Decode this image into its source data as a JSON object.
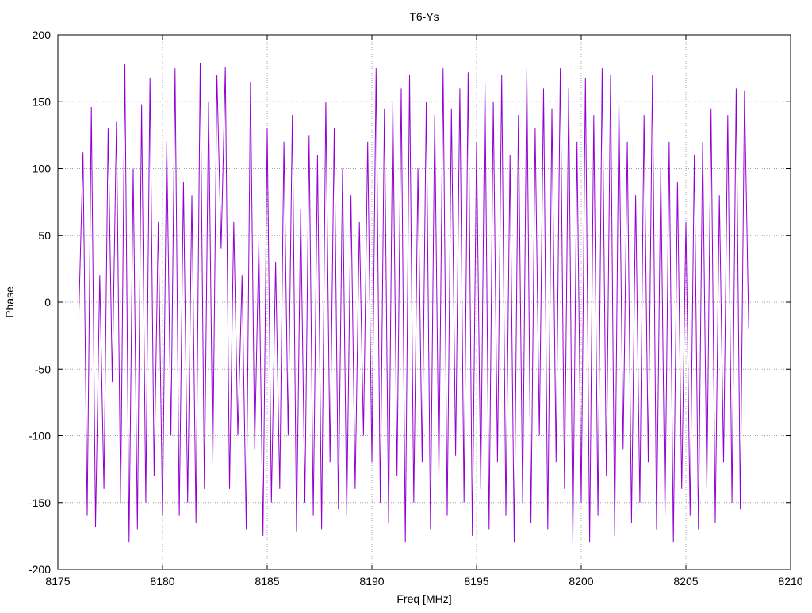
{
  "chart_data": {
    "type": "line",
    "title": "T6-Ys",
    "xlabel": "Freq [MHz]",
    "ylabel": "Phase",
    "xlim": [
      8175,
      8210
    ],
    "ylim": [
      -200,
      200
    ],
    "xticks": [
      "8175",
      "8180",
      "8185",
      "8190",
      "8195",
      "8200",
      "8205",
      "8210"
    ],
    "yticks": [
      "-200",
      "-150",
      "-100",
      "-50",
      "0",
      "50",
      "100",
      "150",
      "200"
    ],
    "grid": true,
    "line_color": "#9400d3",
    "series": [
      {
        "name": "T6-Ys",
        "x_start": 8176.0,
        "x_end": 8208.0,
        "values": [
          -10,
          112,
          -160,
          146,
          -168,
          20,
          -140,
          130,
          -60,
          135,
          -150,
          178,
          -180,
          100,
          -170,
          148,
          -150,
          168,
          -130,
          60,
          -160,
          120,
          -100,
          175,
          -160,
          90,
          -150,
          80,
          -165,
          179,
          -140,
          150,
          -120,
          170,
          40,
          176,
          -140,
          60,
          -100,
          20,
          -170,
          165,
          -110,
          45,
          -175,
          130,
          -150,
          30,
          -140,
          120,
          -100,
          140,
          -172,
          70,
          -150,
          125,
          -160,
          110,
          -170,
          150,
          -120,
          130,
          -155,
          100,
          -160,
          80,
          -140,
          60,
          -100,
          120,
          -120,
          175,
          -150,
          145,
          -165,
          150,
          -130,
          160,
          -180,
          170,
          -150,
          100,
          -120,
          150,
          -170,
          140,
          -130,
          175,
          -160,
          145,
          -115,
          160,
          -150,
          172,
          -175,
          120,
          -140,
          165,
          -170,
          150,
          -120,
          170,
          -160,
          110,
          -180,
          140,
          -150,
          175,
          -165,
          130,
          -100,
          160,
          -170,
          145,
          -120,
          175,
          -140,
          160,
          -180,
          120,
          -150,
          168,
          -180,
          140,
          -160,
          175,
          -130,
          170,
          -175,
          150,
          -110,
          120,
          -165,
          80,
          -150,
          140,
          -120,
          170,
          -170,
          100,
          -160,
          120,
          -180,
          90,
          -140,
          60,
          -160,
          110,
          -170,
          120,
          -140,
          145,
          -165,
          80,
          -120,
          140,
          -150,
          160,
          -155,
          158,
          -20
        ]
      }
    ]
  }
}
